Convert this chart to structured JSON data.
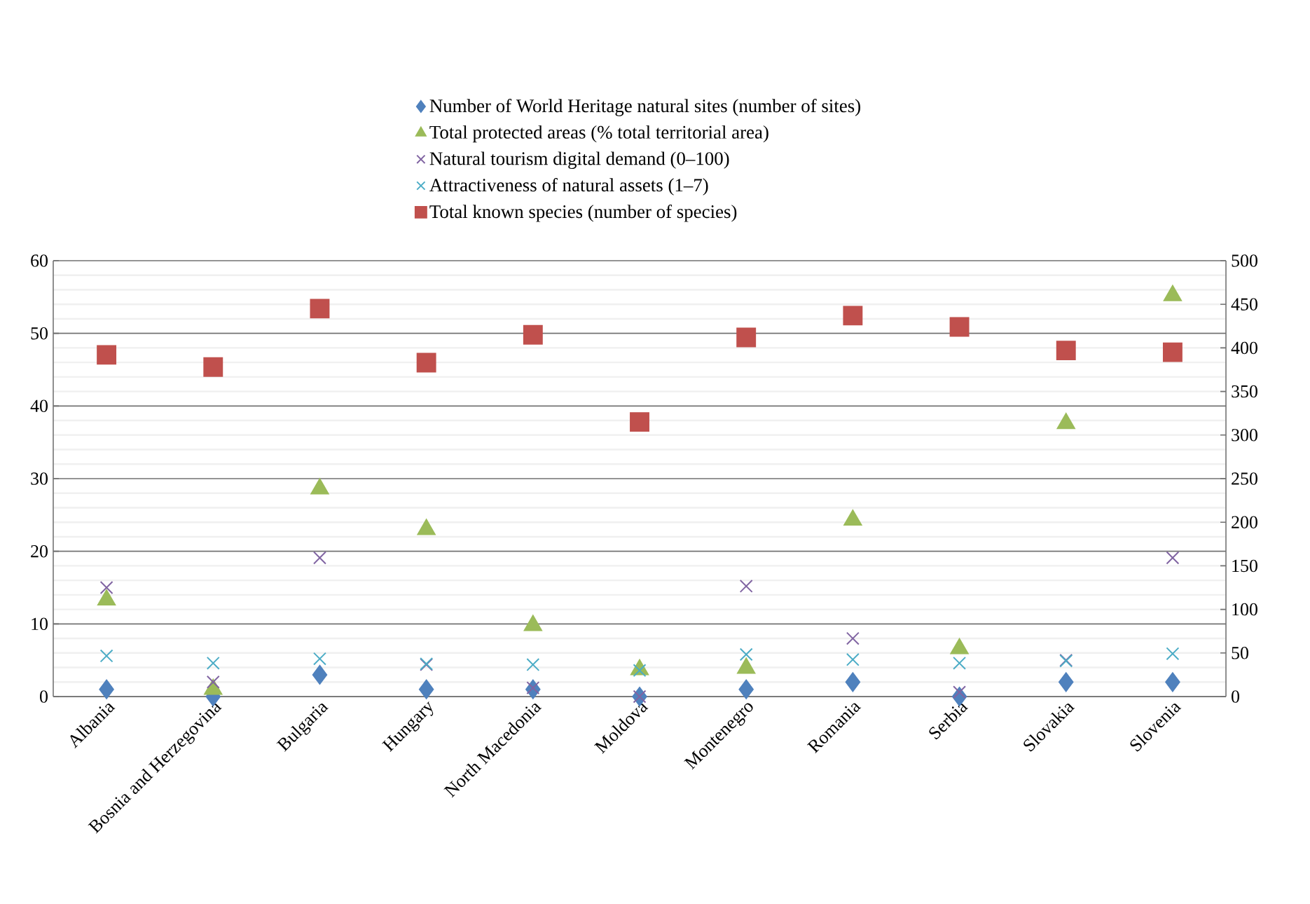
{
  "chart_data": {
    "type": "scatter",
    "categories": [
      "Albania",
      "Bosnia and Herzegovina",
      "Bulgaria",
      "Hungary",
      "North Macedonia",
      "Moldova",
      "Montenegro",
      "Romania",
      "Serbia",
      "Slovakia",
      "Slovenia"
    ],
    "series": [
      {
        "name": "Number of World Heritage natural sites (number of sites)",
        "color": "#4f81bd",
        "marker": "diamond",
        "values": [
          1,
          0,
          3,
          1,
          1,
          0,
          1,
          2,
          0,
          2,
          2
        ]
      },
      {
        "name": "Total protected areas (% total territorial area)",
        "color": "#9bbb59",
        "marker": "triangle",
        "values": [
          13.3,
          1,
          28.6,
          23,
          9.8,
          3.7,
          3.9,
          24.3,
          6.6,
          37.6,
          55.2
        ]
      },
      {
        "name": "Natural tourism digital demand (0–100)",
        "color": "#8064a2",
        "marker": "cross",
        "values": [
          15,
          2,
          19.1,
          4.4,
          1.2,
          0,
          15.2,
          8,
          0.6,
          5,
          19.1
        ]
      },
      {
        "name": "Attractiveness of natural assets (1–7)",
        "color": "#4bacc6",
        "marker": "cross",
        "values": [
          5.6,
          4.6,
          5.2,
          4.5,
          4.4,
          3.6,
          5.8,
          5.1,
          4.6,
          4.9,
          5.9
        ]
      },
      {
        "name": "Total known species (number of species)",
        "color": "#c0504d",
        "marker": "square",
        "axis": "y2",
        "values": [
          392,
          378,
          445,
          383,
          415,
          315,
          412,
          437,
          424,
          397,
          395
        ]
      }
    ],
    "ylim": [
      0,
      60
    ],
    "yticks": [
      0,
      10,
      20,
      30,
      40,
      50,
      60
    ],
    "y2lim": [
      0,
      500
    ],
    "y2ticks": [
      0,
      50,
      100,
      150,
      200,
      250,
      300,
      350,
      400,
      450,
      500
    ],
    "grid": "y",
    "legend": "top"
  }
}
